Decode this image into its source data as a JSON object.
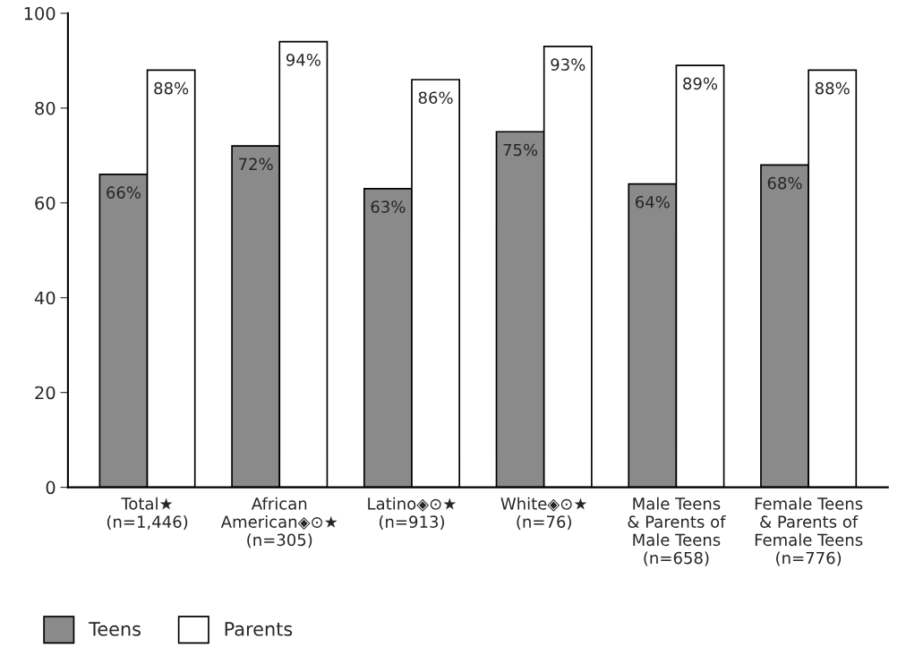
{
  "chart_data": {
    "type": "bar",
    "categories": [
      "Total★\n(n=1,446)",
      "African\nAmerican◈⊙★\n(n=305)",
      "Latino◈⊙★\n(n=913)",
      "White◈⊙★\n(n=76)",
      "Male Teens\n& Parents of\nMale Teens\n(n=658)",
      "Female Teens\n& Parents of\nFemale Teens\n(n=776)"
    ],
    "series": [
      {
        "name": "Teens",
        "color": "#8a8a8a",
        "values": [
          66,
          72,
          63,
          75,
          64,
          68
        ],
        "value_labels": [
          "66%",
          "72%",
          "63%",
          "75%",
          "64%",
          "68%"
        ]
      },
      {
        "name": "Parents",
        "color": "#ffffff",
        "values": [
          88,
          94,
          86,
          93,
          89,
          88
        ],
        "value_labels": [
          "88%",
          "94%",
          "86%",
          "93%",
          "89%",
          "88%"
        ]
      }
    ],
    "ylim": [
      0,
      100
    ],
    "yticks": [
      0,
      20,
      40,
      60,
      80,
      100
    ],
    "grid": false,
    "legend": "bottom left"
  }
}
